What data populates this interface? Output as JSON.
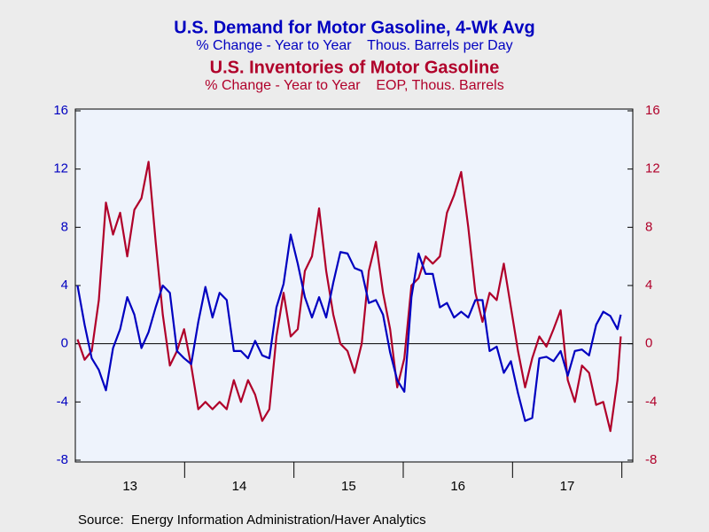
{
  "chart_data": {
    "type": "line",
    "title": "U.S. Demand for Motor Gasoline, 4-Wk Avg",
    "subtitle": "% Change - Year to Year    Thous. Barrels per Day",
    "title2": "U.S. Inventories of Motor Gasoline",
    "subtitle2": "% Change - Year to Year    EOP, Thous. Barrels",
    "source": "Source:  Energy Information Administration/Haver Analytics",
    "x": [
      2013.02,
      2013.085,
      2013.15,
      2013.215,
      2013.28,
      2013.345,
      2013.41,
      2013.475,
      2013.54,
      2013.605,
      2013.67,
      2013.735,
      2013.8,
      2013.865,
      2013.93,
      2013.995,
      2014.06,
      2014.125,
      2014.19,
      2014.255,
      2014.32,
      2014.385,
      2014.45,
      2014.515,
      2014.58,
      2014.645,
      2014.71,
      2014.775,
      2014.84,
      2014.905,
      2014.97,
      2015.035,
      2015.1,
      2015.165,
      2015.23,
      2015.295,
      2015.36,
      2015.425,
      2015.49,
      2015.555,
      2015.62,
      2015.685,
      2015.75,
      2015.815,
      2015.88,
      2015.945,
      2016.01,
      2016.075,
      2016.14,
      2016.205,
      2016.27,
      2016.335,
      2016.4,
      2016.465,
      2016.53,
      2016.595,
      2016.66,
      2016.725,
      2016.79,
      2016.855,
      2016.92,
      2016.985,
      2017.05,
      2017.115,
      2017.18,
      2017.245,
      2017.31,
      2017.375,
      2017.44,
      2017.505,
      2017.57,
      2017.635,
      2017.7,
      2017.765,
      2017.83,
      2017.895,
      2017.96,
      2017.99
    ],
    "series": [
      {
        "name": "U.S. Demand for Motor Gasoline, 4-Wk Avg",
        "color": "#0000c0",
        "axis": "y",
        "values": [
          4.0,
          1.3,
          -1.0,
          -1.8,
          -3.2,
          -0.3,
          1.0,
          3.2,
          2.0,
          -0.3,
          0.8,
          2.5,
          4.0,
          3.5,
          -0.5,
          -1.0,
          -1.4,
          1.5,
          3.9,
          1.8,
          3.5,
          3.0,
          -0.5,
          -0.5,
          -1.0,
          0.2,
          -0.8,
          -1.0,
          2.5,
          4.1,
          7.5,
          5.5,
          3.2,
          1.8,
          3.2,
          1.8,
          4.2,
          6.3,
          6.2,
          5.2,
          5.0,
          2.8,
          3.0,
          2.0,
          -0.6,
          -2.5,
          -3.3,
          3.2,
          6.2,
          4.8,
          4.8,
          2.5,
          2.8,
          1.8,
          2.2,
          1.8,
          3.0,
          3.0,
          -0.5,
          -0.2,
          -2.0,
          -1.2,
          -3.4,
          -5.3,
          -5.1,
          -1.0,
          -0.9,
          -1.2,
          -0.5,
          -2.2,
          -0.5,
          -0.4,
          -0.8,
          1.3,
          2.2,
          1.9,
          1.0,
          2.0
        ]
      },
      {
        "name": "U.S. Inventories of Motor Gasoline",
        "color": "#b0002a",
        "axis": "y2",
        "values": [
          0.3,
          -1.1,
          -0.5,
          3.0,
          9.7,
          7.5,
          9.0,
          6.0,
          9.2,
          10.0,
          12.5,
          7.0,
          2.0,
          -1.5,
          -0.5,
          1.0,
          -1.5,
          -4.5,
          -4.0,
          -4.5,
          -4.0,
          -4.5,
          -2.5,
          -4.0,
          -2.5,
          -3.5,
          -5.3,
          -4.5,
          0.5,
          3.5,
          0.5,
          1.0,
          5.0,
          6.0,
          9.3,
          5.0,
          2.0,
          0.0,
          -0.5,
          -2.0,
          0.0,
          5.0,
          7.0,
          3.5,
          1.0,
          -3.0,
          -1.0,
          4.0,
          4.5,
          6.0,
          5.5,
          6.0,
          9.0,
          10.2,
          11.8,
          8.0,
          3.5,
          1.5,
          3.5,
          3.0,
          5.5,
          2.5,
          -0.5,
          -3.0,
          -1.0,
          0.5,
          -0.2,
          1.0,
          2.3,
          -2.5,
          -4.0,
          -1.5,
          -2.0,
          -4.2,
          -4.0,
          -6.0,
          -2.5,
          0.5
        ]
      }
    ],
    "xlim": [
      2013.0,
      2018.1
    ],
    "xticks": [
      {
        "value": 2013.5,
        "label": "13"
      },
      {
        "value": 2014.5,
        "label": "14"
      },
      {
        "value": 2015.5,
        "label": "15"
      },
      {
        "value": 2016.5,
        "label": "16"
      },
      {
        "value": 2017.5,
        "label": "17"
      }
    ],
    "xminorticks": [
      2014,
      2015,
      2016,
      2017,
      2018
    ],
    "ylim": [
      -8,
      16
    ],
    "yticks": [
      -8,
      -4,
      0,
      4,
      8,
      12,
      16
    ],
    "y2lim": [
      -8,
      16
    ],
    "y2ticks": [
      -8,
      -4,
      0,
      4,
      8,
      12,
      16
    ],
    "zero_line": true,
    "grid": false
  }
}
